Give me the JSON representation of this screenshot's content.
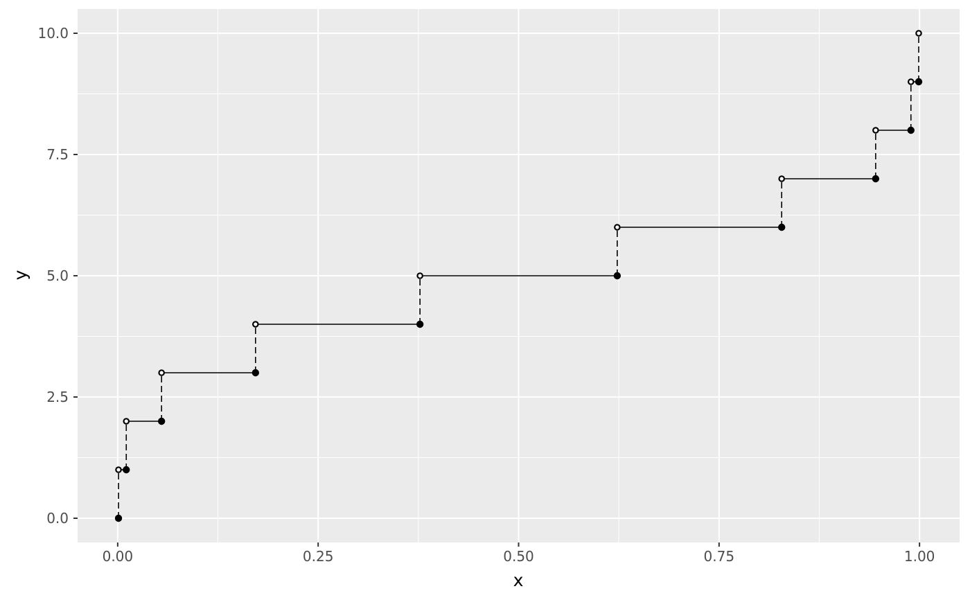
{
  "figure": {
    "background_color": "#FFFFFF",
    "panel_background_color": "#EBEBEB",
    "grid_color": "#FFFFFF",
    "tick_mark_color": "#333333",
    "tick_label_color": "#4D4D4D",
    "axis_title_color": "#000000",
    "series_color": "#000000",
    "open_point_fill": "#FFFFFF"
  },
  "chart_data": {
    "type": "step",
    "title": "",
    "xlabel": "x",
    "ylabel": "y",
    "xlim": [
      0,
      1
    ],
    "ylim": [
      0,
      10
    ],
    "grid": true,
    "legend_position": "none",
    "x_major_ticks": [
      0,
      0.25,
      0.5,
      0.75,
      1
    ],
    "x_tick_labels": [
      "0.00",
      "0.25",
      "0.50",
      "0.75",
      "1.00"
    ],
    "x_minor_ticks": [
      0.125,
      0.375,
      0.625,
      0.875
    ],
    "y_major_ticks": [
      0,
      2.5,
      5,
      7.5,
      10
    ],
    "y_tick_labels": [
      "0.0",
      "2.5",
      "5.0",
      "7.5",
      "10.0"
    ],
    "y_minor_ticks": [
      1.25,
      3.75,
      6.25,
      8.75
    ],
    "closed_points": [
      [
        0.001,
        0
      ],
      [
        0.0107,
        1
      ],
      [
        0.0547,
        2
      ],
      [
        0.1719,
        3
      ],
      [
        0.377,
        4
      ],
      [
        0.623,
        5
      ],
      [
        0.8281,
        6
      ],
      [
        0.9453,
        7
      ],
      [
        0.9893,
        8
      ],
      [
        0.999,
        9
      ]
    ],
    "open_points": [
      [
        0.001,
        1
      ],
      [
        0.0107,
        2
      ],
      [
        0.0547,
        3
      ],
      [
        0.1719,
        4
      ],
      [
        0.377,
        5
      ],
      [
        0.623,
        6
      ],
      [
        0.8281,
        7
      ],
      [
        0.9453,
        8
      ],
      [
        0.9893,
        9
      ],
      [
        0.999,
        10
      ]
    ],
    "solid_segments": [
      [
        0.001,
        0.0107,
        1
      ],
      [
        0.0107,
        0.0547,
        2
      ],
      [
        0.0547,
        0.1719,
        3
      ],
      [
        0.1719,
        0.377,
        4
      ],
      [
        0.377,
        0.623,
        5
      ],
      [
        0.623,
        0.8281,
        6
      ],
      [
        0.8281,
        0.9453,
        7
      ],
      [
        0.9453,
        0.9893,
        8
      ],
      [
        0.9893,
        0.999,
        9
      ]
    ],
    "dashed_segments": [
      [
        0.001,
        0,
        1
      ],
      [
        0.0107,
        1,
        2
      ],
      [
        0.0547,
        2,
        3
      ],
      [
        0.1719,
        3,
        4
      ],
      [
        0.377,
        4,
        5
      ],
      [
        0.623,
        5,
        6
      ],
      [
        0.8281,
        6,
        7
      ],
      [
        0.9453,
        7,
        8
      ],
      [
        0.9893,
        8,
        9
      ],
      [
        0.999,
        9,
        10
      ]
    ]
  }
}
